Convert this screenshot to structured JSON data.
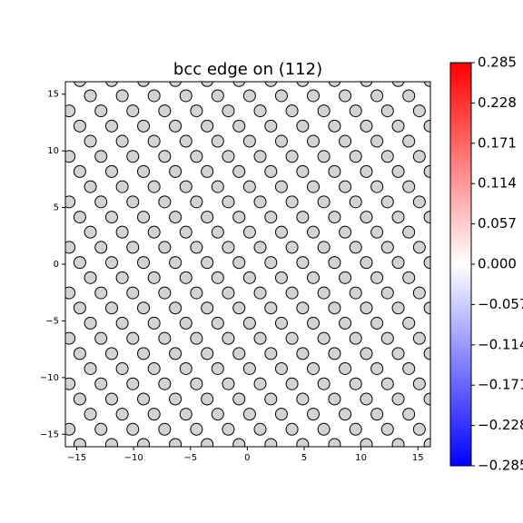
{
  "chart_data": {
    "type": "scatter",
    "title": "bcc edge on (112)",
    "color": "#d3d3d3",
    "xlim": [
      -16,
      16.1
    ],
    "ylim": [
      -16.1,
      16.1
    ],
    "xticks": [
      {
        "value": -15,
        "label": "−15"
      },
      {
        "value": -10,
        "label": "−10"
      },
      {
        "value": -5,
        "label": "−5"
      },
      0,
      5,
      10,
      15
    ],
    "yticks": [
      {
        "value": -15,
        "label": "−15"
      },
      {
        "value": -10,
        "label": "−10"
      },
      {
        "value": -5,
        "label": "−5"
      },
      0,
      5,
      10,
      15
    ],
    "clim": [
      -0.285,
      0.285
    ],
    "cticks": [
      {
        "value": -0.285,
        "label": "−0.285"
      },
      {
        "value": -0.228,
        "label": "−0.228"
      },
      {
        "value": -0.171,
        "label": "−0.171"
      },
      {
        "value": -0.114,
        "label": "−0.114"
      },
      {
        "value": -0.057,
        "label": "−0.057"
      },
      {
        "value": 0,
        "label": "0.000"
      },
      0.057,
      0.114,
      0.171,
      0.228,
      0.285
    ],
    "rows": [
      {
        "y": 16.2,
        "x": [
          -14.73,
          -11.93,
          -9.13,
          -6.33,
          -3.53,
          -0.73,
          2.07,
          4.87,
          7.67,
          10.47,
          13.27,
          16.07
        ]
      },
      {
        "y": 14.86,
        "x": [
          -13.8,
          -11,
          -8.2,
          -5.4,
          -2.6,
          0.2,
          3,
          5.8,
          8.6,
          11.4,
          14.2
        ]
      },
      {
        "y": 13.53,
        "x": [
          -15.67,
          -12.87,
          -10.07,
          -7.27,
          -4.47,
          -1.67,
          1.13,
          3.93,
          6.73,
          9.53,
          12.33,
          15.13
        ]
      },
      {
        "y": 12.19,
        "x": [
          -14.73,
          -11.93,
          -9.13,
          -6.33,
          -3.53,
          -0.73,
          2.07,
          4.87,
          7.67,
          10.47,
          13.27,
          16.07
        ]
      },
      {
        "y": 10.85,
        "x": [
          -13.8,
          -11,
          -8.2,
          -5.4,
          -2.6,
          0.2,
          3,
          5.8,
          8.6,
          11.4,
          14.2
        ]
      },
      {
        "y": 9.51,
        "x": [
          -15.67,
          -12.87,
          -10.07,
          -7.27,
          -4.47,
          -1.67,
          1.13,
          3.93,
          6.73,
          9.53,
          12.33,
          15.13
        ]
      },
      {
        "y": 8.18,
        "x": [
          -14.73,
          -11.93,
          -9.13,
          -6.33,
          -3.53,
          -0.73,
          2.07,
          4.87,
          7.67,
          10.47,
          13.27,
          16.07
        ]
      },
      {
        "y": 6.84,
        "x": [
          -13.8,
          -11,
          -8.2,
          -5.4,
          -2.6,
          0.2,
          3,
          5.8,
          8.6,
          11.4,
          14.2
        ]
      },
      {
        "y": 5.5,
        "x": [
          -15.67,
          -12.87,
          -10.07,
          -7.27,
          -4.47,
          -1.67,
          1.13,
          3.93,
          6.73,
          9.53,
          12.33,
          15.13
        ]
      },
      {
        "y": 4.16,
        "x": [
          -14.73,
          -11.93,
          -9.13,
          -6.33,
          -3.53,
          -0.73,
          2.07,
          4.87,
          7.67,
          10.47,
          13.27,
          16.07
        ]
      },
      {
        "y": 2.83,
        "x": [
          -13.8,
          -11,
          -8.2,
          -5.4,
          -2.6,
          0.2,
          3,
          5.8,
          8.6,
          11.4,
          14.2
        ]
      },
      {
        "y": 1.49,
        "x": [
          -15.67,
          -12.87,
          -10.07,
          -7.27,
          -4.47,
          -1.67,
          1.13,
          3.93,
          6.73,
          9.53,
          12.33,
          15.13
        ]
      },
      {
        "y": 0.15,
        "x": [
          -14.73,
          -11.93,
          -9.13,
          -6.33,
          -3.53,
          -0.73,
          2.07,
          4.87,
          7.67,
          10.47,
          13.27,
          16.07
        ]
      },
      {
        "y": -1.19,
        "x": [
          -13.8,
          -11,
          -8.2,
          -5.4,
          -2.6,
          0.2,
          3,
          5.8,
          8.6,
          11.4,
          14.2
        ]
      },
      {
        "y": -2.53,
        "x": [
          -15.67,
          -12.87,
          -10.07,
          -7.27,
          -4.47,
          -1.67,
          1.13,
          3.93,
          6.73,
          9.53,
          12.33,
          15.13
        ]
      },
      {
        "y": -3.86,
        "x": [
          -14.73,
          -11.93,
          -9.13,
          -6.33,
          -3.53,
          -0.73,
          2.07,
          4.87,
          7.67,
          10.47,
          13.27,
          16.07
        ]
      },
      {
        "y": -5.2,
        "x": [
          -13.8,
          -11,
          -8.2,
          -5.4,
          -2.6,
          0.2,
          3,
          5.8,
          8.6,
          11.4,
          14.2
        ]
      },
      {
        "y": -6.54,
        "x": [
          -15.67,
          -12.87,
          -10.07,
          -7.27,
          -4.47,
          -1.67,
          1.13,
          3.93,
          6.73,
          9.53,
          12.33,
          15.13
        ]
      },
      {
        "y": -7.88,
        "x": [
          -14.73,
          -11.93,
          -9.13,
          -6.33,
          -3.53,
          -0.73,
          2.07,
          4.87,
          7.67,
          10.47,
          13.27,
          16.07
        ]
      },
      {
        "y": -9.21,
        "x": [
          -13.8,
          -11,
          -8.2,
          -5.4,
          -2.6,
          0.2,
          3,
          5.8,
          8.6,
          11.4,
          14.2
        ]
      },
      {
        "y": -10.55,
        "x": [
          -15.67,
          -12.87,
          -10.07,
          -7.27,
          -4.47,
          -1.67,
          1.13,
          3.93,
          6.73,
          9.53,
          12.33,
          15.13
        ]
      },
      {
        "y": -11.89,
        "x": [
          -14.73,
          -11.93,
          -9.13,
          -6.33,
          -3.53,
          -0.73,
          2.07,
          4.87,
          7.67,
          10.47,
          13.27,
          16.07
        ]
      },
      {
        "y": -13.23,
        "x": [
          -13.8,
          -11,
          -8.2,
          -5.4,
          -2.6,
          0.2,
          3,
          5.8,
          8.6,
          11.4,
          14.2
        ]
      },
      {
        "y": -14.56,
        "x": [
          -15.67,
          -12.87,
          -10.07,
          -7.27,
          -4.47,
          -1.67,
          1.13,
          3.93,
          6.73,
          9.53,
          12.33,
          15.13
        ]
      },
      {
        "y": -15.9,
        "x": [
          -14.73,
          -11.93,
          -9.13,
          -6.33,
          -3.53,
          -0.73,
          2.07,
          4.87,
          7.67,
          10.47,
          13.27,
          16.07
        ]
      }
    ]
  }
}
